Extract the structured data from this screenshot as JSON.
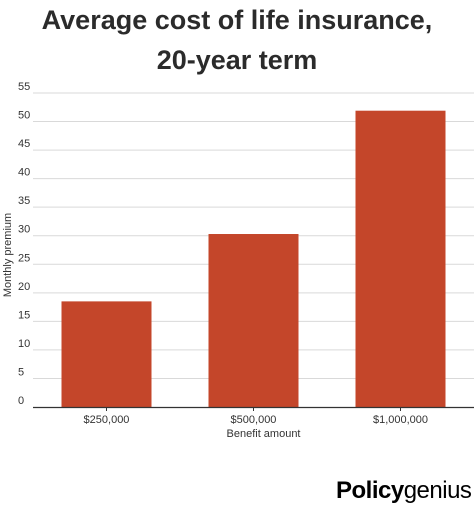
{
  "chart_data": {
    "type": "bar",
    "title_line1": "Average cost of life insurance,",
    "title_line2": "20-year term",
    "categories": [
      "$250,000",
      "$500,000",
      "$1,000,000"
    ],
    "values": [
      18.5,
      30.3,
      51.9
    ],
    "xlabel": "Benefit amount",
    "ylabel": "Monthly premium",
    "ylim": [
      0,
      55
    ],
    "yticks": [
      "0",
      "5",
      "10",
      "15",
      "20",
      "25",
      "30",
      "35",
      "40",
      "45",
      "50",
      "55"
    ],
    "grid": true,
    "bar_color": "#c4462a"
  },
  "brand": {
    "part1": "Policy",
    "part2": "genius"
  }
}
